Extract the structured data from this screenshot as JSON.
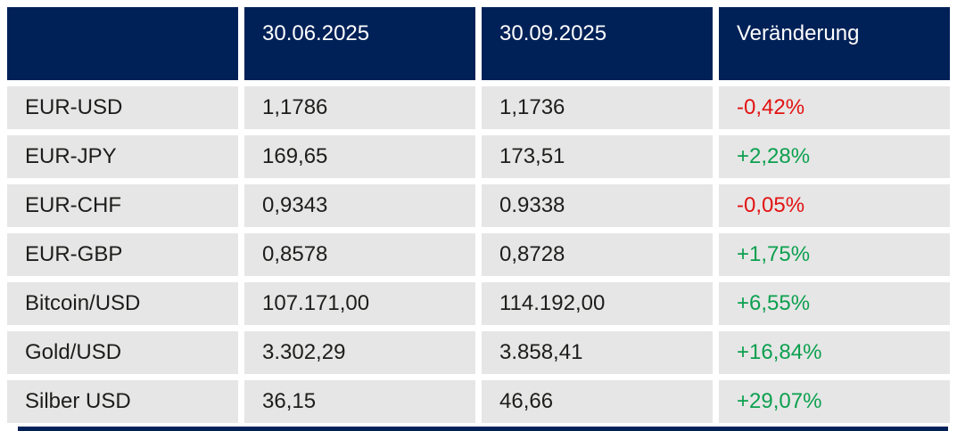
{
  "chart_data": {
    "type": "table",
    "columns": [
      "",
      "30.06.2025",
      "30.09.2025",
      "Veränderung"
    ],
    "rows": [
      {
        "label": "EUR-USD",
        "value_3006": "1,1786",
        "value_3009": "1,1736",
        "change": "-0,42%",
        "direction": "down"
      },
      {
        "label": "EUR-JPY",
        "value_3006": "169,65",
        "value_3009": "173,51",
        "change": "+2,28%",
        "direction": "up"
      },
      {
        "label": "EUR-CHF",
        "value_3006": "0,9343",
        "value_3009": "0.9338",
        "change": "-0,05%",
        "direction": "down"
      },
      {
        "label": "EUR-GBP",
        "value_3006": "0,8578",
        "value_3009": "0,8728",
        "change": "+1,75%",
        "direction": "up"
      },
      {
        "label": "Bitcoin/USD",
        "value_3006": "107.171,00",
        "value_3009": "114.192,00",
        "change": "+6,55%",
        "direction": "up"
      },
      {
        "label": "Gold/USD",
        "value_3006": "3.302,29",
        "value_3009": "3.858,41",
        "change": "+16,84%",
        "direction": "up"
      },
      {
        "label": "Silber USD",
        "value_3006": "36,15",
        "value_3009": "46,66",
        "change": "+29,07%",
        "direction": "up"
      }
    ],
    "legend_position": "none",
    "grid": "off"
  },
  "colors": {
    "header_bg": "#002157",
    "row_bg": "#e6e6e6",
    "text": "#1d1d1b",
    "header_text": "#ffffff",
    "positive": "#0ca04f",
    "negative": "#e31212"
  }
}
